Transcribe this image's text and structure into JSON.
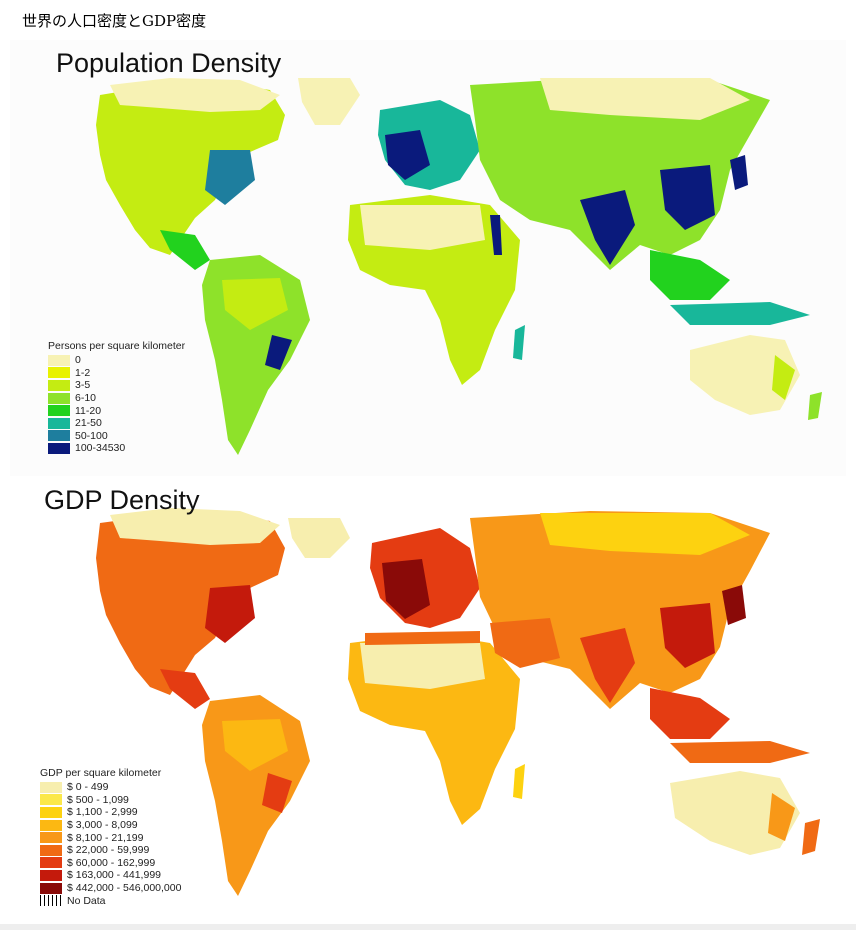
{
  "page_title": "世界の人口密度とGDP密度",
  "population_map": {
    "title": "Population Density",
    "legend_title": "Persons per square kilometer",
    "legend": [
      {
        "label": "0",
        "color": "#f7f2b4"
      },
      {
        "label": "1-2",
        "color": "#e8f200"
      },
      {
        "label": "3-5",
        "color": "#c4ec12"
      },
      {
        "label": "6-10",
        "color": "#8ee22a"
      },
      {
        "label": "11-20",
        "color": "#22d21e"
      },
      {
        "label": "21-50",
        "color": "#18b79a"
      },
      {
        "label": "50-100",
        "color": "#1e7e9e"
      },
      {
        "label": "100-34530",
        "color": "#0a1a7c"
      }
    ]
  },
  "gdp_map": {
    "title": "GDP Density",
    "legend_title": "GDP per square kilometer",
    "legend": [
      {
        "label": "$ 0 - 499",
        "color": "#f7eeae"
      },
      {
        "label": "$ 500 - 1,099",
        "color": "#fbe84a"
      },
      {
        "label": "$ 1,100 - 2,999",
        "color": "#fdd210"
      },
      {
        "label": "$ 3,000 - 8,099",
        "color": "#fcb812"
      },
      {
        "label": "$ 8,100 - 21,199",
        "color": "#f89818"
      },
      {
        "label": "$ 22,000 - 59,999",
        "color": "#f06a14"
      },
      {
        "label": "$ 60,000 - 162,999",
        "color": "#e43c12"
      },
      {
        "label": "$ 163,000 - 441,999",
        "color": "#c41a0c"
      },
      {
        "label": "$ 442,000 - 546,000,000",
        "color": "#8a0a08"
      }
    ],
    "no_data_label": "No Data"
  }
}
